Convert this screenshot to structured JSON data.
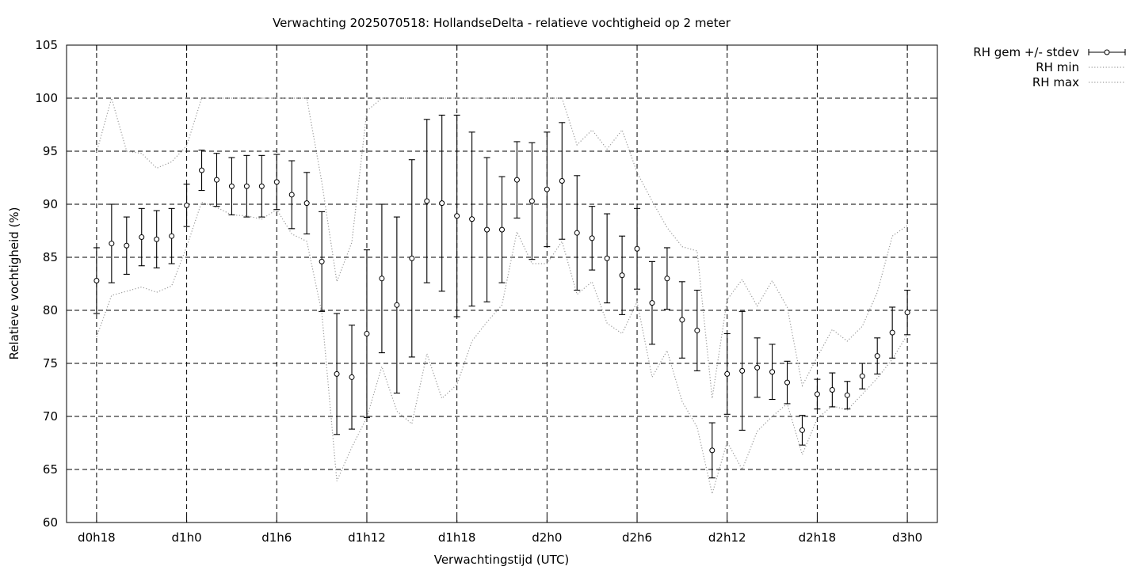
{
  "chart_data": {
    "type": "line",
    "title": "Verwachting 2025070518: HollandseDelta - relatieve vochtigheid op 2 meter",
    "xlabel": "Verwachtingstijd (UTC)",
    "ylabel": "Relatieve vochtigheid (%)",
    "xlim": [
      -2,
      56
    ],
    "ylim": [
      60,
      105
    ],
    "grid": true,
    "legend_position": "outside-top-right",
    "x_ticks": [
      0,
      6,
      12,
      18,
      24,
      30,
      36,
      42,
      48,
      54
    ],
    "x_tick_labels": [
      "d0h18",
      "d1h0",
      "d1h6",
      "d1h12",
      "d1h18",
      "d2h0",
      "d2h6",
      "d2h12",
      "d2h18",
      "d3h0"
    ],
    "y_ticks": [
      60,
      65,
      70,
      75,
      80,
      85,
      90,
      95,
      100,
      105
    ],
    "x": [
      0,
      1,
      2,
      3,
      4,
      5,
      6,
      7,
      8,
      9,
      10,
      11,
      12,
      13,
      14,
      15,
      16,
      17,
      18,
      19,
      20,
      21,
      22,
      23,
      24,
      25,
      26,
      27,
      28,
      29,
      30,
      31,
      32,
      33,
      34,
      35,
      36,
      37,
      38,
      39,
      40,
      41,
      42,
      43,
      44,
      45,
      46,
      47,
      48,
      49,
      50,
      51,
      52,
      53,
      54
    ],
    "series": [
      {
        "name": "RH gem +/- stdev",
        "style": "errorbars",
        "values": [
          82.8,
          86.3,
          86.1,
          86.9,
          86.7,
          87.0,
          89.9,
          93.2,
          92.3,
          91.7,
          91.7,
          91.7,
          92.1,
          90.9,
          90.1,
          84.6,
          74.0,
          73.7,
          77.8,
          83.0,
          80.5,
          84.9,
          90.3,
          90.1,
          88.9,
          88.6,
          87.6,
          87.6,
          92.3,
          90.3,
          91.4,
          92.2,
          87.3,
          86.8,
          84.9,
          83.3,
          85.8,
          80.7,
          83.0,
          79.1,
          78.1,
          66.8,
          74.0,
          74.3,
          74.6,
          74.2,
          73.2,
          68.7,
          72.1,
          72.5,
          72.0,
          73.8,
          75.7,
          77.9,
          79.8
        ],
        "stdev": [
          3.1,
          3.7,
          2.7,
          2.7,
          2.7,
          2.6,
          2.0,
          1.9,
          2.5,
          2.7,
          2.9,
          2.9,
          2.6,
          3.2,
          2.9,
          4.7,
          5.7,
          4.9,
          7.9,
          7.0,
          8.3,
          9.3,
          7.7,
          8.3,
          9.5,
          8.2,
          6.8,
          5.0,
          3.6,
          5.5,
          5.4,
          5.5,
          5.4,
          3.0,
          4.2,
          3.7,
          3.8,
          3.9,
          2.9,
          3.6,
          3.8,
          2.6,
          3.8,
          5.6,
          2.8,
          2.6,
          2.0,
          1.4,
          1.4,
          1.6,
          1.3,
          1.2,
          1.7,
          2.4,
          2.1
        ]
      },
      {
        "name": "RH min",
        "style": "dotted",
        "values": [
          77.5,
          81.4,
          81.8,
          82.2,
          81.7,
          82.3,
          86.0,
          90.2,
          89.7,
          89.0,
          88.9,
          88.6,
          89.5,
          87.2,
          86.5,
          79.8,
          63.9,
          67.1,
          69.9,
          74.7,
          70.5,
          69.3,
          75.9,
          71.7,
          73.0,
          77.1,
          78.9,
          80.5,
          87.4,
          84.4,
          84.4,
          86.5,
          81.5,
          82.7,
          78.8,
          77.8,
          80.8,
          73.7,
          76.2,
          71.4,
          69.0,
          62.7,
          67.6,
          65.0,
          68.6,
          70.0,
          71.2,
          66.4,
          69.8,
          71.0,
          70.6,
          72.1,
          73.6,
          75.4,
          77.7
        ]
      },
      {
        "name": "RH max",
        "style": "dotted",
        "values": [
          94.9,
          100.0,
          95.0,
          94.8,
          93.4,
          94.0,
          95.5,
          100.0,
          100.0,
          100.0,
          100.0,
          100.0,
          100.0,
          100.0,
          100.0,
          92.1,
          82.7,
          86.4,
          98.8,
          100.0,
          100.0,
          100.0,
          100.0,
          100.0,
          100.0,
          100.0,
          100.0,
          100.0,
          100.0,
          100.0,
          100.0,
          100.0,
          95.6,
          97.0,
          95.2,
          97.0,
          93.0,
          90.3,
          87.8,
          86.0,
          85.6,
          71.7,
          81.0,
          82.9,
          80.4,
          82.8,
          80.3,
          72.9,
          75.6,
          78.2,
          77.1,
          78.5,
          81.7,
          87.0,
          88.0
        ]
      }
    ]
  }
}
